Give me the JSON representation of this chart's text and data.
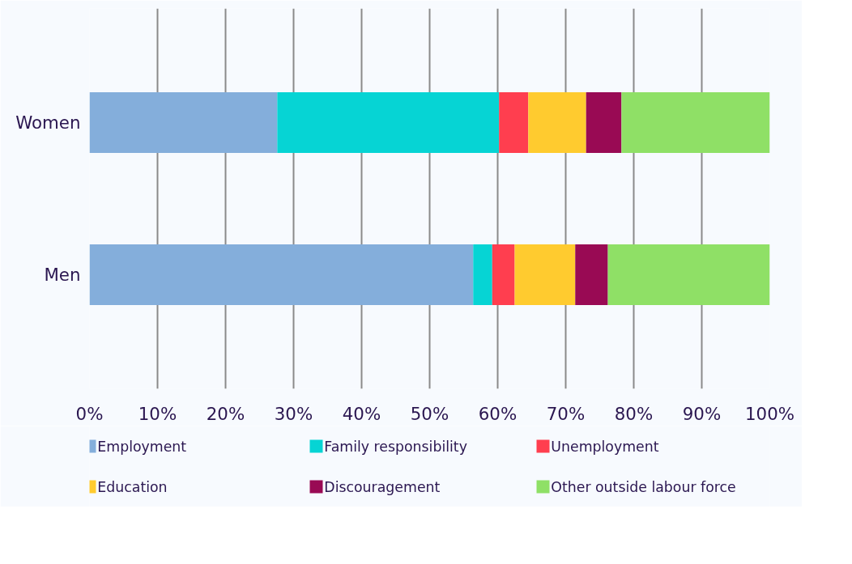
{
  "chart_data": {
    "type": "bar",
    "orientation": "horizontal",
    "stacked": true,
    "categories": [
      "Women",
      "Men"
    ],
    "series": [
      {
        "name": "Employment",
        "color": "#84aedb",
        "values": [
          27.6,
          56.4
        ]
      },
      {
        "name": "Family responsibility",
        "color": "#06d4d4",
        "values": [
          32.6,
          2.8
        ]
      },
      {
        "name": "Unemployment",
        "color": "#ff3e4f",
        "values": [
          4.3,
          3.3
        ]
      },
      {
        "name": "Education",
        "color": "#ffcb2f",
        "values": [
          8.5,
          8.9
        ]
      },
      {
        "name": "Discouragement",
        "color": "#990a54",
        "values": [
          5.2,
          4.8
        ]
      },
      {
        "name": "Other outside labour force",
        "color": "#8fe066",
        "values": [
          21.8,
          23.8
        ]
      }
    ],
    "xlim": [
      0,
      100
    ],
    "xticks": [
      {
        "value": 0,
        "label": "0%"
      },
      {
        "value": 10,
        "label": "10%"
      },
      {
        "value": 20,
        "label": "20%"
      },
      {
        "value": 30,
        "label": "30%"
      },
      {
        "value": 40,
        "label": "40%"
      },
      {
        "value": 50,
        "label": "50%"
      },
      {
        "value": 60,
        "label": "60%"
      },
      {
        "value": 70,
        "label": "70%"
      },
      {
        "value": 80,
        "label": "80%"
      },
      {
        "value": 90,
        "label": "90%"
      },
      {
        "value": 100,
        "label": "100%"
      }
    ],
    "grid": "x",
    "legend": "bottom"
  }
}
